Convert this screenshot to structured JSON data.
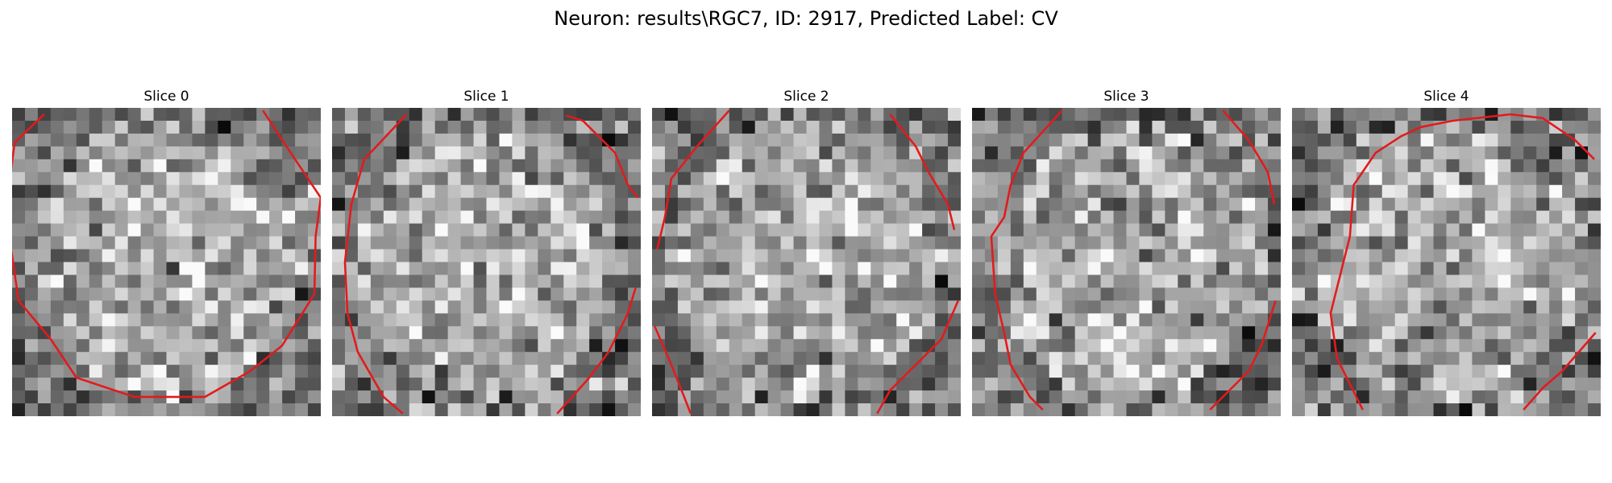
{
  "figure": {
    "title": "Neuron: results\\RGC7, ID: 2917, Predicted Label: CV"
  },
  "contour_color": "#e31a1c",
  "slices": [
    {
      "label": "Slice 0",
      "seed": 11,
      "contour": [
        [
          [
            2.5,
            0.5
          ],
          [
            0.2,
            2.7
          ],
          [
            -0.5,
            8.0
          ],
          [
            0.5,
            15.0
          ],
          [
            3.0,
            18.0
          ],
          [
            5.0,
            21.0
          ],
          [
            9.5,
            22.5
          ],
          [
            15.0,
            22.5
          ],
          [
            18.5,
            20.5
          ],
          [
            21.0,
            18.5
          ],
          [
            23.5,
            14.5
          ],
          [
            23.6,
            10.0
          ],
          [
            24.0,
            7.0
          ],
          [
            21.0,
            2.5
          ],
          [
            19.5,
            0.2
          ]
        ]
      ]
    },
    {
      "label": "Slice 1",
      "seed": 23,
      "contour": [
        [
          [
            5.8,
            0.5
          ],
          [
            2.5,
            4.0
          ],
          [
            1.5,
            7.5
          ],
          [
            1.0,
            12.0
          ],
          [
            1.2,
            16.0
          ],
          [
            2.0,
            19.0
          ],
          [
            4.0,
            22.5
          ],
          [
            5.5,
            23.8
          ]
        ],
        [
          [
            18.2,
            0.6
          ],
          [
            19.5,
            1.0
          ],
          [
            22.0,
            3.5
          ],
          [
            23.0,
            6.0
          ],
          [
            23.8,
            7.0
          ]
        ],
        [
          [
            23.6,
            14.0
          ],
          [
            23.0,
            16.0
          ],
          [
            21.5,
            19.0
          ],
          [
            20.0,
            21.0
          ],
          [
            17.5,
            23.8
          ]
        ]
      ]
    },
    {
      "label": "Slice 2",
      "seed": 37,
      "contour": [
        [
          [
            6.0,
            0.2
          ],
          [
            3.5,
            3.0
          ],
          [
            1.5,
            5.5
          ],
          [
            1.0,
            8.5
          ],
          [
            0.4,
            11.0
          ]
        ],
        [
          [
            0.2,
            17.0
          ],
          [
            1.5,
            20.0
          ],
          [
            2.5,
            22.5
          ],
          [
            3.0,
            23.8
          ]
        ],
        [
          [
            18.5,
            0.5
          ],
          [
            20.5,
            3.0
          ],
          [
            21.5,
            5.0
          ],
          [
            23.0,
            7.5
          ],
          [
            23.5,
            9.5
          ]
        ],
        [
          [
            23.8,
            15.0
          ],
          [
            22.5,
            18.0
          ],
          [
            20.0,
            20.5
          ],
          [
            18.5,
            22.0
          ],
          [
            17.5,
            23.8
          ]
        ]
      ]
    },
    {
      "label": "Slice 3",
      "seed": 53,
      "contour": [
        [
          [
            7.0,
            0.2
          ],
          [
            4.0,
            3.5
          ],
          [
            3.0,
            6.0
          ],
          [
            2.5,
            8.5
          ],
          [
            1.5,
            10.0
          ],
          [
            1.8,
            14.5
          ],
          [
            2.5,
            17.5
          ],
          [
            3.0,
            20.0
          ],
          [
            4.5,
            22.5
          ],
          [
            5.5,
            23.5
          ]
        ],
        [
          [
            19.5,
            0.2
          ],
          [
            21.5,
            2.5
          ],
          [
            23.0,
            5.0
          ],
          [
            23.5,
            7.5
          ]
        ],
        [
          [
            23.6,
            15.0
          ],
          [
            22.5,
            18.5
          ],
          [
            21.5,
            20.5
          ],
          [
            18.5,
            23.5
          ]
        ]
      ]
    },
    {
      "label": "Slice 4",
      "seed": 71,
      "contour": [
        [
          [
            5.5,
            23.5
          ],
          [
            4.5,
            21.5
          ],
          [
            3.5,
            19.5
          ],
          [
            3.0,
            16.0
          ],
          [
            4.5,
            10.0
          ],
          [
            4.8,
            6.0
          ],
          [
            6.5,
            3.5
          ],
          [
            8.5,
            2.2
          ],
          [
            10.0,
            1.5
          ],
          [
            12.5,
            1.0
          ],
          [
            17.0,
            0.5
          ],
          [
            19.5,
            0.8
          ],
          [
            22.0,
            2.5
          ],
          [
            23.5,
            4.0
          ]
        ],
        [
          [
            18.0,
            23.5
          ],
          [
            19.5,
            21.8
          ],
          [
            21.0,
            20.5
          ],
          [
            23.6,
            17.5
          ]
        ]
      ]
    }
  ]
}
